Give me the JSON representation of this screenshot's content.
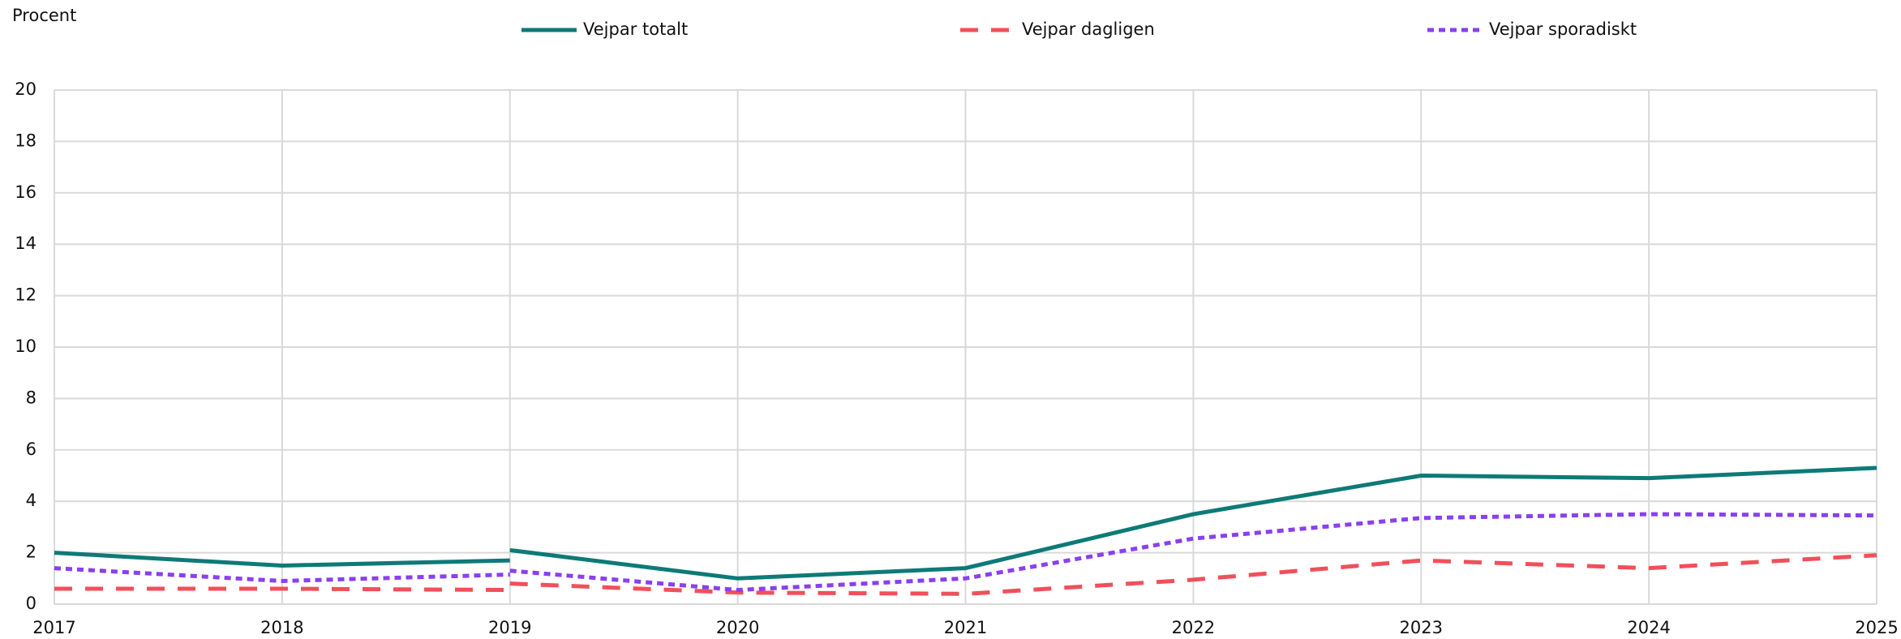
{
  "chart_data": {
    "type": "line",
    "y_label": "Procent",
    "x": [
      2017,
      2018,
      2019,
      2019,
      2019,
      2020,
      2021,
      2022,
      2023,
      2024,
      2025
    ],
    "series": [
      {
        "name": "Vejpar totalt",
        "color": "#0e7a77",
        "dash": "solid",
        "values": [
          2.0,
          1.5,
          1.7,
          null,
          2.1,
          1.0,
          1.4,
          3.5,
          5.0,
          4.9,
          5.3
        ]
      },
      {
        "name": "Vejpar dagligen",
        "color": "#f0505a",
        "dash": "dashed",
        "values": [
          0.6,
          0.6,
          0.55,
          null,
          0.8,
          0.45,
          0.4,
          0.95,
          1.7,
          1.4,
          1.9
        ]
      },
      {
        "name": "Vejpar sporadiskt",
        "color": "#8a3ff0",
        "dash": "dotted",
        "values": [
          1.4,
          0.9,
          1.15,
          null,
          1.3,
          0.55,
          1.0,
          2.55,
          3.35,
          3.5,
          3.45
        ]
      }
    ],
    "xlim": [
      2017,
      2025
    ],
    "xticks": [
      2017,
      2018,
      2019,
      2020,
      2021,
      2022,
      2023,
      2024,
      2025
    ],
    "ylim": [
      0,
      20
    ],
    "yticks": [
      0,
      2,
      4,
      6,
      8,
      10,
      12,
      14,
      16,
      18,
      20
    ],
    "grid": true,
    "legend": "top"
  }
}
